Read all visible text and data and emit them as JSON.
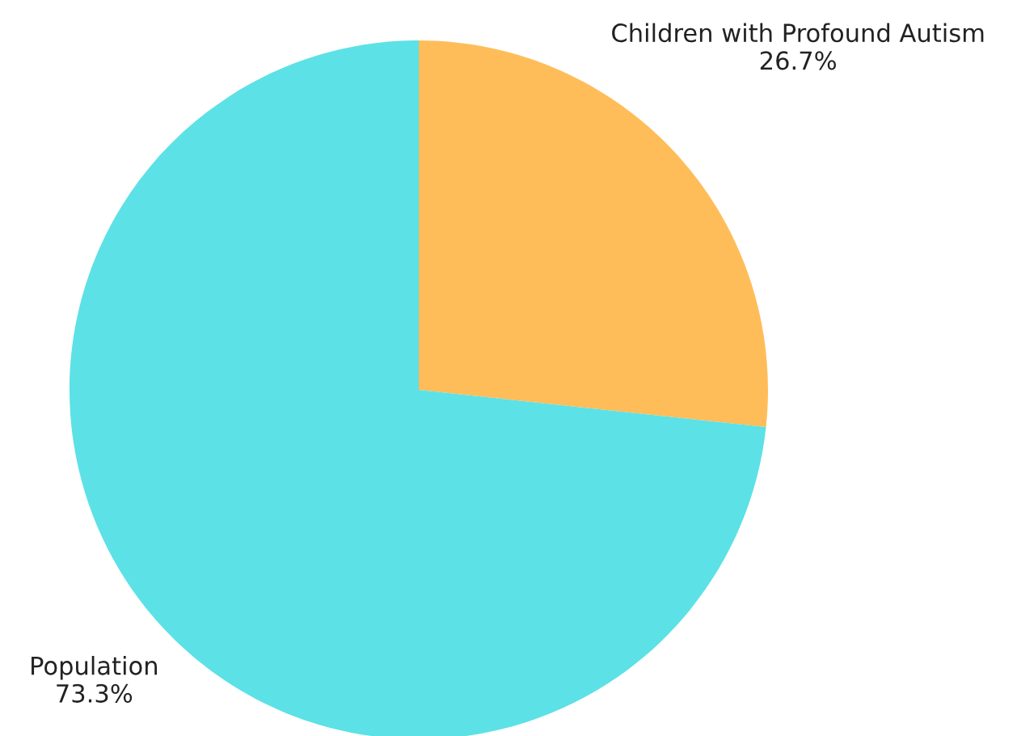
{
  "chart_data": {
    "type": "pie",
    "categories": [
      "Children with Profound Autism",
      "Population"
    ],
    "values": [
      26.7,
      73.3
    ],
    "value_labels": [
      "26.7%",
      "73.3%"
    ],
    "colors": [
      "#ffbd59",
      "#5ce1e6"
    ]
  }
}
